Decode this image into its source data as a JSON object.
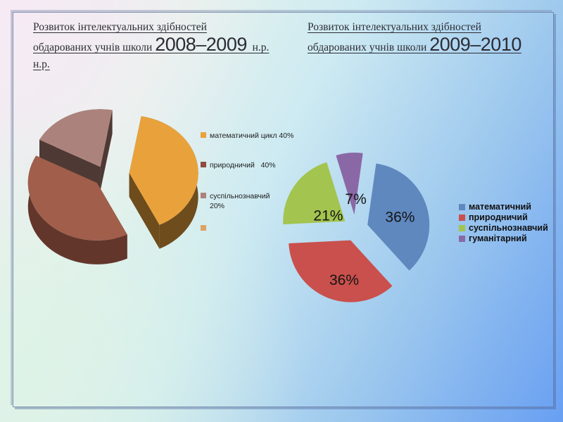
{
  "left_panel": {
    "title": {
      "line1": "Розвиток інтелектуальних здібностей",
      "line2_prefix": "обдарованих учнів школи ",
      "years": "2008–2009",
      "line2_suffix": "  н.р.",
      "line3": "н.р."
    }
  },
  "right_panel": {
    "title": {
      "line1": "Розвиток інтелектуальних здібностей",
      "line2_prefix": "обдарованих учнів школи ",
      "years": "2009–2010"
    }
  },
  "chart_data": [
    {
      "type": "pie",
      "style": "3d_exploded",
      "title": "Розвиток інтелектуальних здібностей обдарованих учнів школи 2008–2009 н.р. н.р.",
      "labels": [
        "математичний цикл",
        "природничий",
        "суспільнознавчий"
      ],
      "values": [
        40,
        40,
        20
      ],
      "unit": "percent",
      "colors": [
        "#E9A23B",
        "#A05E4B",
        "#AC837C"
      ],
      "side_colors": [
        "#6E4C1C",
        "#63362B",
        "#4E3934"
      ],
      "data_labels_shown": false,
      "legend_position": "right",
      "legend_labels": [
        "математичний цикл 40%",
        "природничий   40%",
        "суспільнознавчий 20%",
        ""
      ],
      "legend_swatch_colors": [
        "#E9A23B",
        "#8F4B42",
        "#AC837C",
        "#DFA265"
      ]
    },
    {
      "type": "pie",
      "style": "flat_exploded",
      "title": "Розвиток інтелектуальних здібностей обдарованих учнів школи 2009–2010",
      "labels": [
        "математичний",
        "природничий",
        "суспільнознавчий",
        "гуманітарний"
      ],
      "values": [
        36,
        36,
        21,
        7
      ],
      "unit": "percent",
      "colors": [
        "#5E88BE",
        "#C9504C",
        "#A3C44F",
        "#8A68A6"
      ],
      "data_labels": [
        "36%",
        "36%",
        "21%",
        "7%"
      ],
      "legend_position": "right",
      "legend_labels": [
        "математичний",
        "природничий",
        "суспільнознавчий",
        "гуманітарний"
      ]
    }
  ]
}
